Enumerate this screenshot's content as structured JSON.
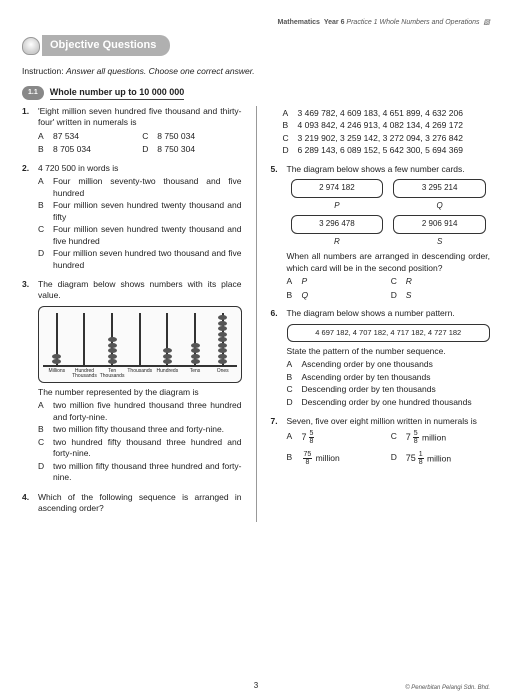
{
  "header": {
    "subject": "Mathematics",
    "year": "Year 6",
    "chapter": "Practice 1 Whole Numbers and Operations"
  },
  "banner": "Objective Questions",
  "instruction_label": "Instruction:",
  "instruction_text": "Answer all questions. Choose one correct answer.",
  "section": {
    "num": "1.1",
    "title": "Whole number up to 10 000 000"
  },
  "q1": {
    "num": "1.",
    "text": "'Eight million seven hundred five thousand and thirty-four' written in numerals is",
    "A": "87 534",
    "B": "8 705 034",
    "C": "8 750 034",
    "D": "8 750 304"
  },
  "q2": {
    "num": "2.",
    "text": "4 720 500 in words is",
    "A": "Four million seventy-two thousand and five hundred",
    "B": "Four million seven hundred twenty thousand and fifty",
    "C": "Four million seven hundred twenty thousand and five hundred",
    "D": "Four million seven hundred two thousand and five hundred"
  },
  "q3": {
    "num": "3.",
    "text": "The diagram below shows numbers with its place value.",
    "post": "The number represented by the diagram is",
    "A": "two million five hundred thousand three hundred and forty-nine.",
    "B": "two million fifty thousand three and forty-nine.",
    "C": "two hundred fifty thousand three hundred and forty-nine.",
    "D": "two million fifty thousand three hundred and forty-nine.",
    "abacus": {
      "rods": [
        2,
        0,
        5,
        0,
        3,
        4,
        9
      ],
      "labels": [
        "Millions",
        "Hundred Thousands",
        "Ten Thousands",
        "Thousands",
        "Hundreds",
        "Tens",
        "Ones"
      ]
    }
  },
  "q4": {
    "num": "4.",
    "text": "Which of the following sequence is arranged in ascending order?",
    "A": "3 469 782, 4 609 183, 4 651 899, 4 632 206",
    "B": "4 093 842, 4 246 913, 4 082 134, 4 269 172",
    "C": "3 219 902, 3 259 142, 3 272 094, 3 276 842",
    "D": "6 289 143, 6 089 152, 5 642 300, 5 694 369"
  },
  "q5": {
    "num": "5.",
    "text": "The diagram below shows a few number cards.",
    "cards": {
      "vals": [
        "2 974 182",
        "3 295 214",
        "3 296 478",
        "2 906 914"
      ],
      "lbls": [
        "P",
        "Q",
        "R",
        "S"
      ]
    },
    "post": "When all numbers are arranged in descending order, which card will be in the second position?",
    "A": "P",
    "B": "Q",
    "C": "R",
    "D": "S"
  },
  "q6": {
    "num": "6.",
    "text": "The diagram below shows a number pattern.",
    "pattern": "4 697 182, 4 707 182, 4 717 182, 4 727 182",
    "post": "State the pattern of the number sequence.",
    "A": "Ascending order by one thousands",
    "B": "Ascending order by ten thousands",
    "C": "Descending order by ten thousands",
    "D": "Descending order by one hundred thousands"
  },
  "q7": {
    "num": "7.",
    "text": "Seven, five over eight million written in numerals is"
  },
  "page_num": "3",
  "copyright": "© Penerbitan Pelangi Sdn. Bhd."
}
